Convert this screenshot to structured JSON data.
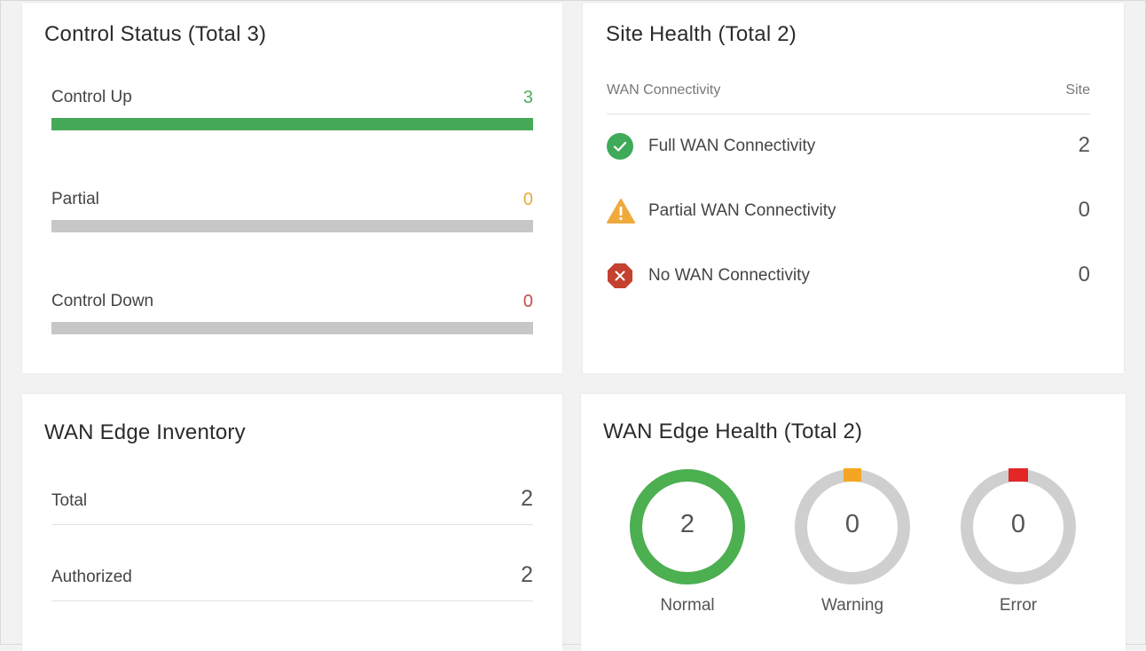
{
  "control_status": {
    "title": "Control Status (Total 3)",
    "rows": [
      {
        "label": "Control Up",
        "value": "3",
        "fraction": 1.0,
        "value_color": "#4aab5b",
        "bar_color": "#46a957"
      },
      {
        "label": "Partial",
        "value": "0",
        "fraction": 0,
        "value_color": "#e9a93d",
        "bar_color": "#f0a33a"
      },
      {
        "label": "Control Down",
        "value": "0",
        "fraction": 0,
        "value_color": "#c0504d",
        "bar_color": "#c0392b"
      }
    ]
  },
  "site_health": {
    "title": "Site Health (Total 2)",
    "col_left": "WAN Connectivity",
    "col_right": "Site",
    "rows": [
      {
        "label": "Full WAN Connectivity",
        "count": "2",
        "icon": "check-circle-icon",
        "color": "#3faa5a"
      },
      {
        "label": "Partial WAN Connectivity",
        "count": "0",
        "icon": "warning-triangle-icon",
        "color": "#f0a93b"
      },
      {
        "label": "No WAN Connectivity",
        "count": "0",
        "icon": "error-octagon-icon",
        "color": "#c4402f"
      }
    ]
  },
  "wan_edge_inventory": {
    "title": "WAN Edge Inventory",
    "rows": [
      {
        "label": "Total",
        "value": "2"
      },
      {
        "label": "Authorized",
        "value": "2"
      }
    ]
  },
  "wan_edge_health": {
    "title": "WAN Edge Health (Total 2)",
    "total": 2,
    "donuts": [
      {
        "label": "Normal",
        "value": "2",
        "count": 2,
        "color": "#4caf50"
      },
      {
        "label": "Warning",
        "value": "0",
        "count": 0,
        "color": "#f4a623"
      },
      {
        "label": "Error",
        "value": "0",
        "count": 0,
        "color": "#e32626"
      }
    ],
    "track_color": "#cfcfcf"
  }
}
